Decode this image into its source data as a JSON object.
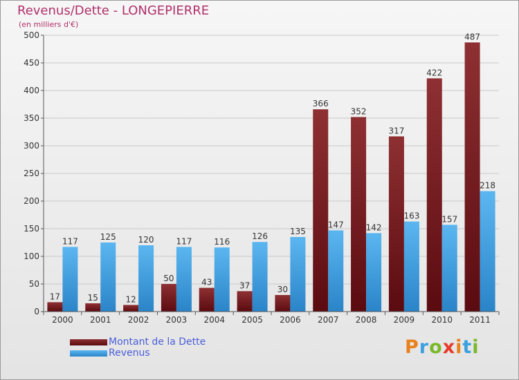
{
  "header": {
    "title": "Revenus/Dette - LONGEPIERRE",
    "subtitle": "(en milliers d'€)"
  },
  "logo": {
    "text": "Proxiti",
    "letters": [
      {
        "ch": "P",
        "color": "#e8801c"
      },
      {
        "ch": "r",
        "color": "#3aa0e0"
      },
      {
        "ch": "o",
        "color": "#7ab82a"
      },
      {
        "ch": "x",
        "color": "#e63a2a"
      },
      {
        "ch": "i",
        "color": "#e8801c"
      },
      {
        "ch": "t",
        "color": "#3aa0e0"
      },
      {
        "ch": "i",
        "color": "#7ab82a"
      }
    ]
  },
  "chart_data": {
    "type": "bar",
    "title": "Revenus/Dette - LONGEPIERRE",
    "subtitle": "(en milliers d'€)",
    "categories": [
      "2000",
      "2001",
      "2002",
      "2003",
      "2004",
      "2005",
      "2006",
      "2007",
      "2008",
      "2009",
      "2010",
      "2011"
    ],
    "series": [
      {
        "name": "Montant de la Dette",
        "color": "#7a1a1e",
        "values": [
          17,
          15,
          12,
          50,
          43,
          37,
          30,
          366,
          352,
          317,
          422,
          487
        ]
      },
      {
        "name": "Revenus",
        "color": "#3d9fe0",
        "values": [
          117,
          125,
          120,
          117,
          116,
          126,
          135,
          147,
          142,
          163,
          157,
          218
        ]
      }
    ],
    "ylim": [
      0,
      500
    ],
    "yticks": [
      0,
      50,
      100,
      150,
      200,
      250,
      300,
      350,
      400,
      450,
      500
    ],
    "grid": true,
    "legend": "bottom-left"
  }
}
